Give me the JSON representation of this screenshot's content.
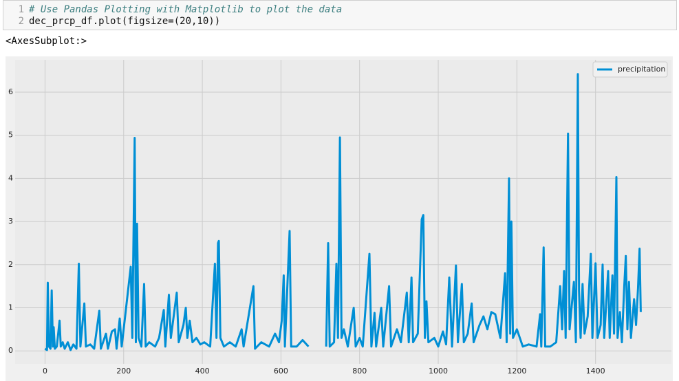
{
  "code": {
    "line_numbers": [
      "1",
      "2"
    ],
    "lines": [
      "# Use Pandas Plotting with Matplotlib to plot the data",
      "dec_prcp_df.plot(figsize=(20,10))"
    ]
  },
  "output": "<AxesSubplot:>",
  "chart_data": {
    "type": "line",
    "x": [
      0,
      5,
      7,
      10,
      14,
      17,
      20,
      22,
      25,
      30,
      37,
      40,
      45,
      50,
      58,
      65,
      72,
      80,
      86,
      90,
      100,
      104,
      115,
      125,
      138,
      142,
      155,
      160,
      170,
      178,
      182,
      190,
      195,
      218,
      222,
      228,
      231,
      234,
      238,
      245,
      252,
      256,
      265,
      280,
      290,
      302,
      306,
      315,
      320,
      335,
      340,
      352,
      358,
      362,
      368,
      375,
      385,
      395,
      405,
      420,
      432,
      436,
      440,
      442,
      446,
      455,
      470,
      485,
      500,
      505,
      530,
      534,
      550,
      570,
      585,
      595,
      602,
      607,
      610,
      622,
      626,
      640,
      655,
      670,
      690,
      715,
      720,
      724,
      735,
      741,
      745,
      750,
      754,
      760,
      770,
      785,
      790,
      800,
      808,
      825,
      830,
      838,
      842,
      855,
      860,
      875,
      880,
      895,
      905,
      920,
      925,
      932,
      936,
      948,
      958,
      962,
      966,
      970,
      975,
      990,
      1000,
      1012,
      1020,
      1028,
      1035,
      1045,
      1050,
      1060,
      1065,
      1075,
      1085,
      1090,
      1105,
      1115,
      1125,
      1135,
      1145,
      1158,
      1170,
      1174,
      1180,
      1183,
      1186,
      1190,
      1200,
      1215,
      1230,
      1250,
      1259,
      1262,
      1268,
      1272,
      1285,
      1300,
      1310,
      1315,
      1320,
      1324,
      1330,
      1334,
      1345,
      1350,
      1355,
      1358,
      1362,
      1367,
      1372,
      1380,
      1388,
      1392,
      1400,
      1405,
      1413,
      1418,
      1422,
      1432,
      1436,
      1443,
      1447,
      1453,
      1456,
      1462,
      1467,
      1473,
      1477,
      1481,
      1485,
      1490,
      1498,
      1503,
      1508,
      1512,
      1515
    ],
    "series": [
      {
        "name": "precipitation",
        "color": "#008fd5",
        "values": [
          0.05,
          0.02,
          1.58,
          0.1,
          0.05,
          1.4,
          0.1,
          0.55,
          0.05,
          0.1,
          0.7,
          0.1,
          0.2,
          0.05,
          0.2,
          0.02,
          0.15,
          0.05,
          2.02,
          0.1,
          1.1,
          0.1,
          0.15,
          0.05,
          0.93,
          0.05,
          0.4,
          0.05,
          0.45,
          0.5,
          0.05,
          0.75,
          0.1,
          1.95,
          0.3,
          4.94,
          0.2,
          2.95,
          0.3,
          0.1,
          1.55,
          0.1,
          0.2,
          0.1,
          0.3,
          0.95,
          0.1,
          1.3,
          0.3,
          1.35,
          0.2,
          0.6,
          1.0,
          0.3,
          0.7,
          0.2,
          0.3,
          0.15,
          0.2,
          0.1,
          2.02,
          0.3,
          2.5,
          2.55,
          0.3,
          0.1,
          0.2,
          0.1,
          0.5,
          0.1,
          1.5,
          0.05,
          0.2,
          0.1,
          0.4,
          0.2,
          0.7,
          1.75,
          0.1,
          2.78,
          0.1,
          0.1,
          0.25,
          0.1,
          null,
          0.1,
          2.5,
          0.1,
          0.2,
          2.02,
          0.3,
          4.95,
          0.3,
          0.5,
          0.1,
          1.0,
          0.1,
          0.3,
          0.1,
          2.25,
          0.1,
          0.88,
          0.1,
          1.0,
          0.1,
          1.5,
          0.1,
          0.5,
          0.2,
          1.35,
          0.2,
          1.7,
          0.2,
          0.4,
          3.05,
          3.15,
          0.3,
          1.15,
          0.2,
          0.3,
          0.1,
          0.45,
          0.15,
          1.7,
          0.1,
          1.98,
          0.2,
          1.55,
          0.2,
          0.4,
          1.1,
          0.2,
          0.6,
          0.8,
          0.5,
          0.9,
          0.85,
          0.3,
          1.8,
          0.2,
          4.0,
          0.4,
          3.0,
          0.3,
          0.5,
          0.1,
          0.15,
          0.1,
          0.85,
          0.1,
          2.4,
          0.1,
          0.1,
          0.2,
          1.5,
          0.5,
          1.85,
          0.3,
          5.04,
          0.5,
          1.6,
          0.2,
          6.42,
          1.4,
          0.3,
          1.55,
          0.4,
          0.8,
          2.25,
          0.3,
          2.03,
          0.3,
          0.6,
          2.0,
          0.3,
          1.85,
          0.3,
          1.75,
          0.4,
          4.03,
          0.3,
          0.9,
          0.2,
          1.5,
          2.2,
          0.5,
          1.6,
          0.3,
          1.2,
          0.6,
          1.45,
          2.37,
          0.9
        ]
      }
    ],
    "xlim": [
      -76,
      1593
    ],
    "ylim": [
      -0.3,
      6.75
    ],
    "xticks": [
      0,
      200,
      400,
      600,
      800,
      1000,
      1200,
      1400
    ],
    "yticks": [
      0,
      1,
      2,
      3,
      4,
      5,
      6
    ],
    "grid": true,
    "legend": "upper right"
  }
}
